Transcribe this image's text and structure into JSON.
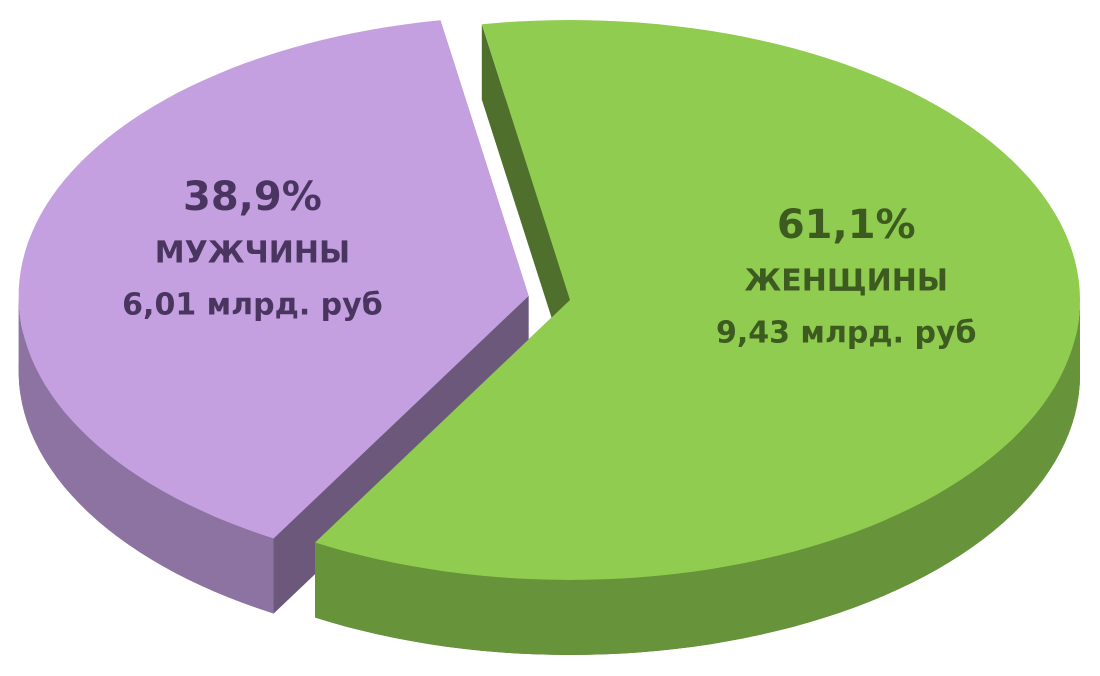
{
  "chart_data": {
    "type": "pie",
    "categories": [
      "МУЖЧИНЫ",
      "ЖЕНЩИНЫ"
    ],
    "values": [
      38.9,
      61.1
    ],
    "value_labels": [
      "38,9%",
      "61,1%"
    ],
    "amount_labels": [
      "6,01 млрд. руб",
      "9,43 млрд. руб"
    ],
    "colors": [
      "#c4a0e0",
      "#8fcc50"
    ],
    "label_colors": [
      "#4a3560",
      "#3d5a20"
    ]
  }
}
